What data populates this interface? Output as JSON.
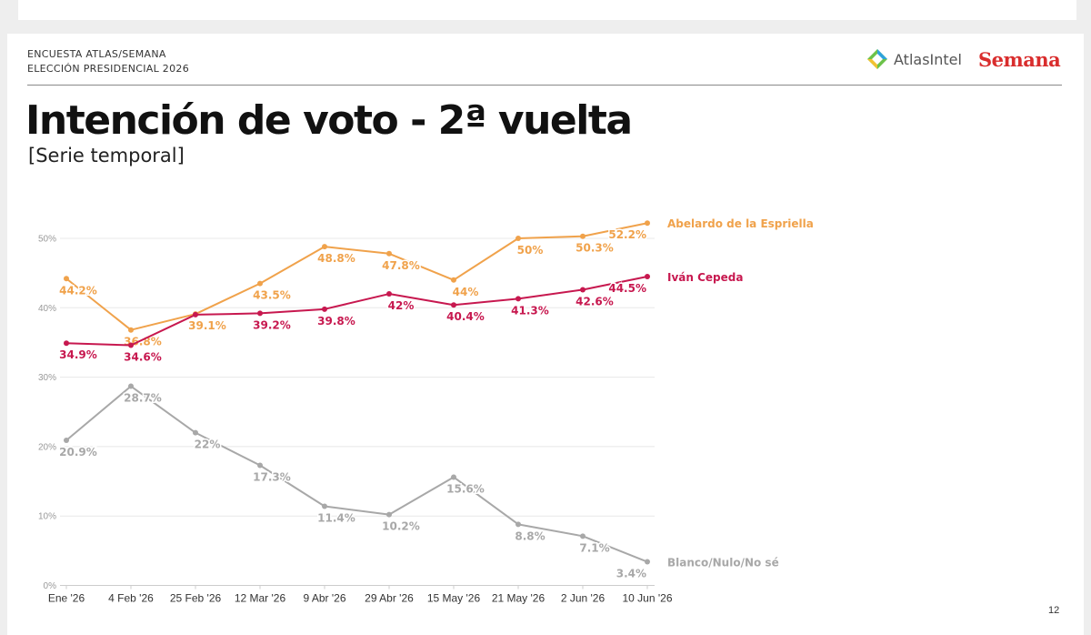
{
  "header": {
    "survey_name": "ENCUESTA ATLAS/SEMANA",
    "survey_sub": "ELECCIÓN PRESIDENCIAL 2026",
    "logo_atlas": "AtlasIntel",
    "logo_semana": "Semana"
  },
  "title": "Intención de voto - 2ª vuelta",
  "subtitle": "[Serie temporal]",
  "page_number": "12",
  "colors": {
    "orange": "#f0a24b",
    "crimson": "#c7184f",
    "gray": "#a8a8a8",
    "grid": "#e8e8e8",
    "axis_text": "#999999",
    "semana_red": "#d92d2d"
  },
  "chart_data": {
    "type": "line",
    "categories": [
      "Ene '26",
      "4 Feb '26",
      "25 Feb '26",
      "12 Mar '26",
      "9 Abr '26",
      "29 Abr '26",
      "15 May '26",
      "21 May '26",
      "2 Jun '26",
      "10 Jun '26"
    ],
    "ylim": [
      0,
      55
    ],
    "yticks": [
      "0%",
      "10%",
      "20%",
      "30%",
      "40%",
      "50%"
    ],
    "ytick_values": [
      0,
      10,
      20,
      30,
      40,
      50
    ],
    "grid": true,
    "legend": "end-of-line labels, right",
    "series": [
      {
        "name": "Abelardo de la Espriella",
        "color": "#f0a24b",
        "values": [
          44.2,
          36.8,
          39.1,
          43.5,
          48.8,
          47.8,
          44,
          50,
          50.3,
          52.2
        ],
        "labels": [
          "44.2%",
          "36.8%",
          "39.1%",
          "43.5%",
          "48.8%",
          "47.8%",
          "44%",
          "50%",
          "50.3%",
          "52.2%"
        ]
      },
      {
        "name": "Iván Cepeda",
        "color": "#c7184f",
        "values": [
          34.9,
          34.6,
          39.0,
          39.2,
          39.8,
          42,
          40.4,
          41.3,
          42.6,
          44.5
        ],
        "labels": [
          "34.9%",
          "34.6%",
          null,
          "39.2%",
          "39.8%",
          "42%",
          "40.4%",
          "41.3%",
          "42.6%",
          "44.5%"
        ]
      },
      {
        "name": "Blanco/Nulo/No sé",
        "color": "#a8a8a8",
        "values": [
          20.9,
          28.7,
          22,
          17.3,
          11.4,
          10.2,
          15.6,
          8.8,
          7.1,
          3.4
        ],
        "labels": [
          "20.9%",
          "28.7%",
          "22%",
          "17.3%",
          "11.4%",
          "10.2%",
          "15.6%",
          "8.8%",
          "7.1%",
          "3.4%"
        ]
      }
    ]
  }
}
